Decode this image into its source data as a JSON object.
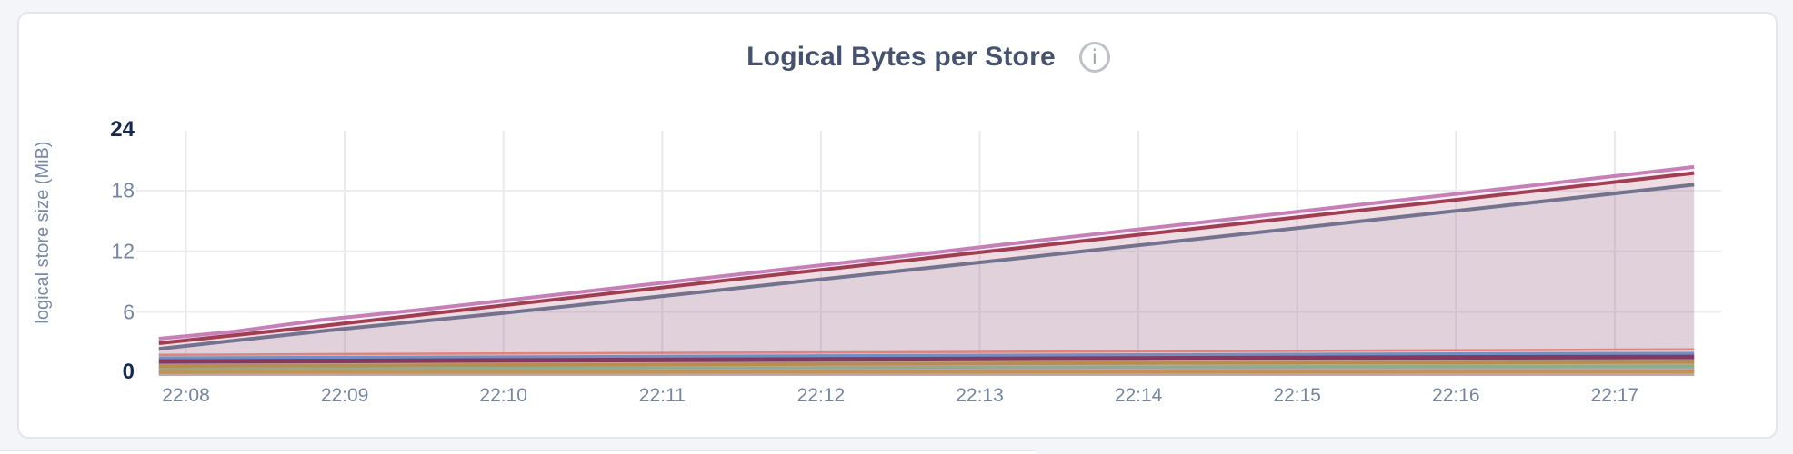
{
  "header": {
    "title": "Logical Bytes per Store",
    "info_glyph": "i"
  },
  "colors": {
    "page_bg": "#f4f5f9",
    "card_bg": "#ffffff",
    "card_border": "#e4e5e9",
    "title": "#47536e",
    "tick": "#76849e",
    "tick_bold": "#16284d",
    "axis_label": "#7888a5",
    "grid_h": "#ececf0",
    "grid_v": "#e9e9ed",
    "icon_border": "#bdc1c8",
    "icon_glyph": "#9aa0a9"
  },
  "chart_data": {
    "type": "area",
    "title": "Logical Bytes per Store",
    "xlabel": "",
    "ylabel": "logical store size (MiB)",
    "ylim": [
      0,
      24
    ],
    "y_ticks": [
      {
        "label": "0",
        "value": 0,
        "bold": true,
        "gridline": false
      },
      {
        "label": "6",
        "value": 6,
        "bold": false,
        "gridline": true
      },
      {
        "label": "12",
        "value": 12,
        "bold": false,
        "gridline": true
      },
      {
        "label": "18",
        "value": 18,
        "bold": false,
        "gridline": true
      },
      {
        "label": "24",
        "value": 24,
        "bold": true,
        "gridline": false
      }
    ],
    "x_tick_labels": [
      "22:08",
      "22:09",
      "22:10",
      "22:11",
      "22:12",
      "22:13",
      "22:14",
      "22:15",
      "22:16",
      "22:17"
    ],
    "x_range_minutes_from_2208": [
      -0.17,
      9.5
    ],
    "grid": true,
    "legend_position": "none",
    "fill_opacity": 0.11,
    "series": [
      {
        "id": "s1",
        "color": "#c77fb7",
        "line_width": 4,
        "points": [
          [
            -0.17,
            3.35
          ],
          [
            0.3,
            4.05
          ],
          [
            0.85,
            5.2
          ],
          [
            1.5,
            6.25
          ],
          [
            2.5,
            8.0
          ],
          [
            3.5,
            9.75
          ],
          [
            4.5,
            11.5
          ],
          [
            5.5,
            13.3
          ],
          [
            6.5,
            15.05
          ],
          [
            7.5,
            16.8
          ],
          [
            8.5,
            18.55
          ],
          [
            9.5,
            20.35
          ]
        ]
      },
      {
        "id": "s2",
        "color": "#a23e52",
        "line_width": 4,
        "points": [
          [
            -0.17,
            2.9
          ],
          [
            0.85,
            4.6
          ],
          [
            2,
            6.65
          ],
          [
            3.5,
            9.3
          ],
          [
            5,
            11.9
          ],
          [
            6.5,
            14.5
          ],
          [
            8,
            17.1
          ],
          [
            9.5,
            19.75
          ]
        ]
      },
      {
        "id": "s3",
        "color": "#73728f",
        "line_width": 4,
        "points": [
          [
            -0.17,
            2.35
          ],
          [
            0.85,
            4.1
          ],
          [
            2,
            5.9
          ],
          [
            3.5,
            8.4
          ],
          [
            5,
            10.9
          ],
          [
            6.5,
            13.45
          ],
          [
            8,
            16.0
          ],
          [
            9.5,
            18.6
          ]
        ]
      },
      {
        "id": "s4",
        "color": "#e0837c",
        "line_width": 2.5,
        "points": [
          [
            -0.17,
            1.75
          ],
          [
            2,
            1.9
          ],
          [
            4,
            2.0
          ],
          [
            6,
            2.1
          ],
          [
            8,
            2.2
          ],
          [
            9.5,
            2.3
          ]
        ]
      },
      {
        "id": "s5",
        "color": "#6f8fc5",
        "line_width": 3.5,
        "points": [
          [
            -0.17,
            1.45
          ],
          [
            2,
            1.55
          ],
          [
            4,
            1.65
          ],
          [
            6,
            1.75
          ],
          [
            8,
            1.85
          ],
          [
            9.5,
            1.9
          ]
        ]
      },
      {
        "id": "s6",
        "color": "#84395f",
        "line_width": 5,
        "points": [
          [
            -0.17,
            1.1
          ],
          [
            2,
            1.2
          ],
          [
            4,
            1.3
          ],
          [
            6,
            1.4
          ],
          [
            8,
            1.5
          ],
          [
            9.5,
            1.55
          ]
        ]
      },
      {
        "id": "s7",
        "color": "#b78d50",
        "line_width": 4,
        "points": [
          [
            -0.17,
            0.65
          ],
          [
            2,
            0.75
          ],
          [
            4,
            0.85
          ],
          [
            6,
            0.95
          ],
          [
            8,
            1.0
          ],
          [
            9.5,
            1.05
          ]
        ]
      },
      {
        "id": "s8",
        "color": "#8cad89",
        "line_width": 4,
        "points": [
          [
            -0.17,
            0.3
          ],
          [
            2,
            0.38
          ],
          [
            4,
            0.45
          ],
          [
            6,
            0.52
          ],
          [
            8,
            0.58
          ],
          [
            9.5,
            0.62
          ]
        ]
      },
      {
        "id": "s9",
        "color": "#c19bb8",
        "line_width": 3,
        "points": [
          [
            -0.17,
            0.15
          ],
          [
            2,
            0.18
          ],
          [
            4,
            0.22
          ],
          [
            6,
            0.26
          ],
          [
            8,
            0.3
          ],
          [
            9.5,
            0.32
          ]
        ]
      },
      {
        "id": "s10",
        "color": "#c09457",
        "line_width": 4,
        "points": [
          [
            -0.17,
            0.05
          ],
          [
            2,
            0.06
          ],
          [
            4,
            0.07
          ],
          [
            6,
            0.08
          ],
          [
            8,
            0.09
          ],
          [
            9.5,
            0.1
          ]
        ]
      }
    ]
  }
}
